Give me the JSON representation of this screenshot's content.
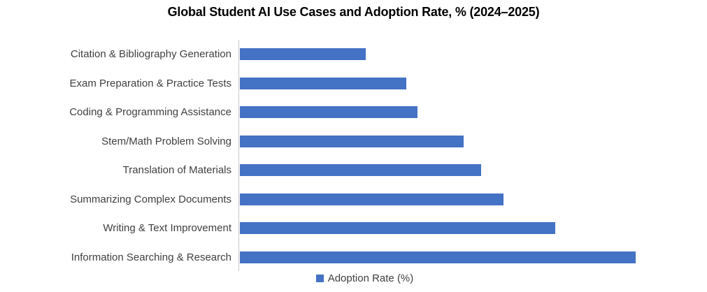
{
  "title": "Global Student AI Use Cases and Adoption Rate, % (2024–2025)",
  "legend": {
    "label": "Adoption Rate (%)",
    "marker_color": "#4472c4"
  },
  "colors": {
    "bar": "#4472c4",
    "axis_line": "#c9c9c9",
    "title_text": "#000000",
    "label_text": "#3f3f3f",
    "background": "#ffffff"
  },
  "chart_data": {
    "type": "bar",
    "orientation": "horizontal",
    "title": "Global Student AI Use Cases and Adoption Rate, % (2024–2025)",
    "categories": [
      "Citation & Bibliography Generation",
      "Exam Preparation & Practice Tests",
      "Coding & Programming Assistance",
      "Stem/Math Problem Solving",
      "Translation of Materials",
      "Summarizing Complex Documents",
      "Writing & Text Improvement",
      "Information Searching & Research"
    ],
    "values": [
      22,
      29,
      31,
      39,
      42,
      46,
      55,
      69
    ],
    "series": [
      {
        "name": "Adoption Rate (%)",
        "values": [
          22,
          29,
          31,
          39,
          42,
          46,
          55,
          69
        ]
      }
    ],
    "xlabel": "",
    "ylabel": "",
    "xlim": [
      0,
      70
    ],
    "grid": false,
    "value_labels_shown": false,
    "axis_tick_labels_shown": false,
    "legend_position": "bottom"
  }
}
